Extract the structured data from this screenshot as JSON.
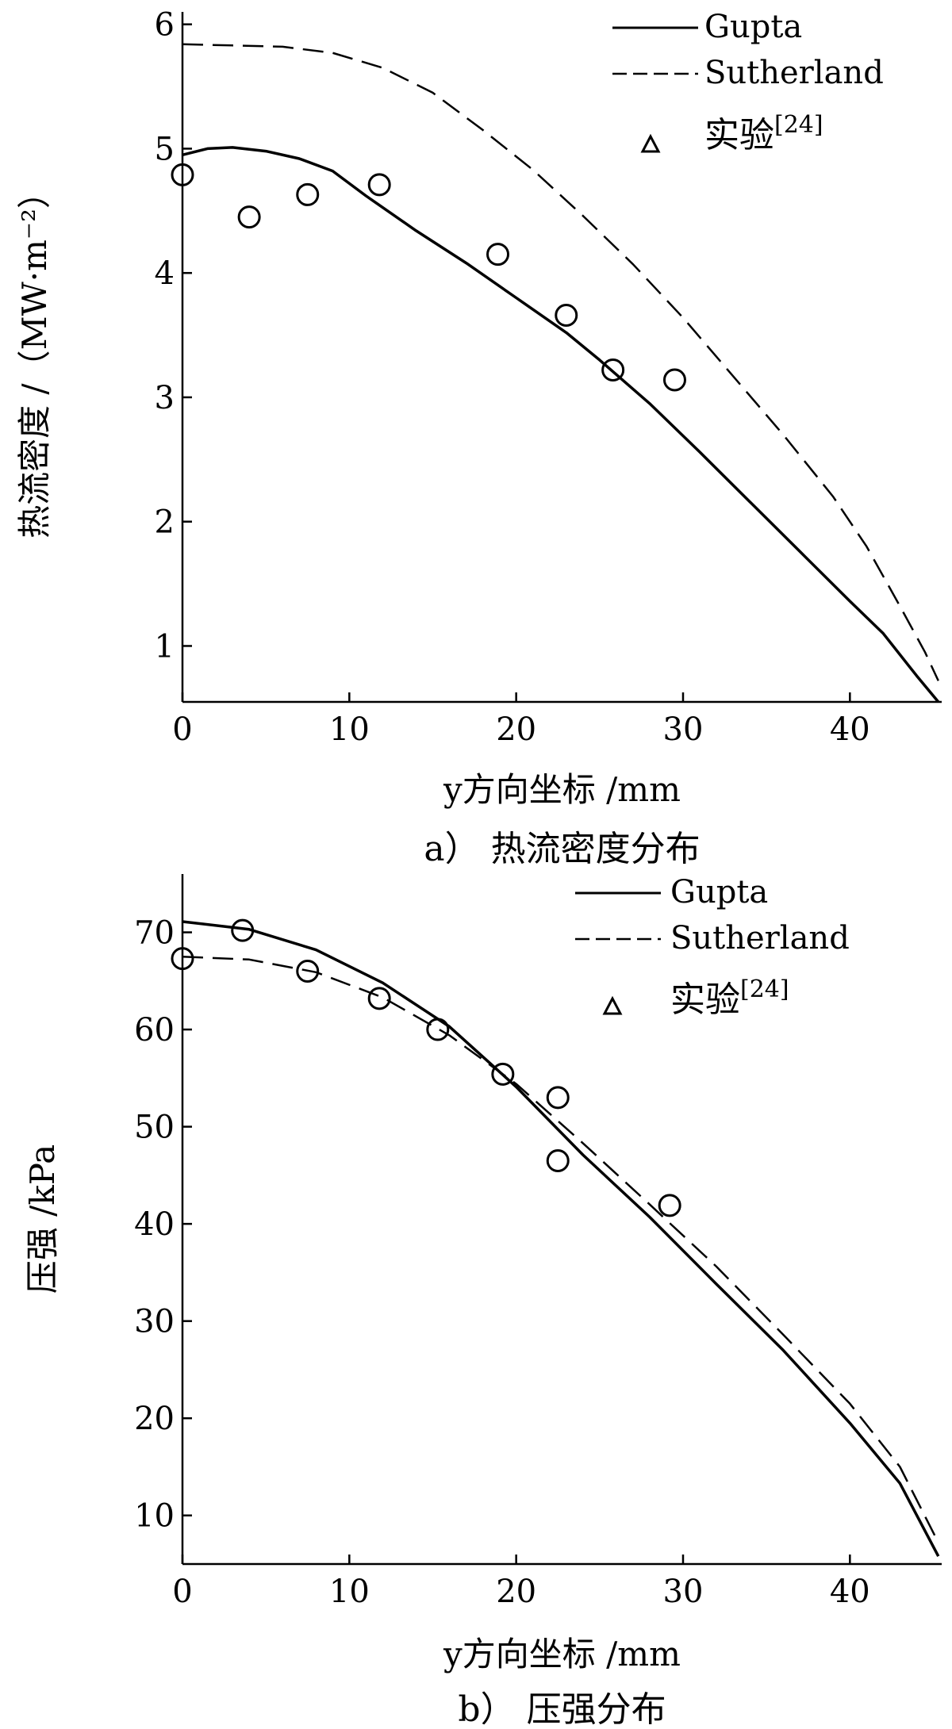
{
  "chart_data": [
    {
      "type": "line",
      "caption": "a） 热流密度分布",
      "xlabel": "y方向坐标 /mm",
      "ylabel": "热流密度 /（MW·m⁻²）",
      "xlim": [
        0,
        45.5
      ],
      "ylim": [
        0.55,
        6.1
      ],
      "xticks": [
        0,
        10,
        20,
        30,
        40
      ],
      "yticks": [
        1,
        2,
        3,
        4,
        5,
        6
      ],
      "legend_position": "top-right",
      "grid": false,
      "series": [
        {
          "name": "Gupta",
          "style": "solid",
          "x": [
            0,
            1.5,
            3,
            5,
            7,
            9,
            11,
            14,
            17,
            20,
            23,
            25,
            28,
            31,
            34,
            37,
            40,
            42,
            44,
            45.3
          ],
          "y": [
            4.95,
            5.0,
            5.01,
            4.98,
            4.92,
            4.82,
            4.62,
            4.34,
            4.08,
            3.8,
            3.52,
            3.3,
            2.95,
            2.56,
            2.16,
            1.76,
            1.36,
            1.1,
            0.76,
            0.55
          ]
        },
        {
          "name": "Sutherland",
          "style": "dashed",
          "x": [
            0,
            3,
            6,
            9,
            12,
            15,
            18,
            21,
            24,
            27,
            30,
            33,
            36,
            39,
            41,
            43,
            44.5,
            45.3
          ],
          "y": [
            5.84,
            5.83,
            5.82,
            5.77,
            5.65,
            5.45,
            5.15,
            4.83,
            4.46,
            4.07,
            3.64,
            3.17,
            2.7,
            2.2,
            1.8,
            1.32,
            0.95,
            0.72
          ]
        },
        {
          "name": "实验",
          "legend_sup": "[24]",
          "style": "marker",
          "x": [
            0,
            4,
            7.5,
            11.8,
            18.9,
            23,
            25.8,
            29.5
          ],
          "y": [
            4.79,
            4.45,
            4.63,
            4.71,
            4.15,
            3.66,
            3.22,
            3.14
          ]
        }
      ]
    },
    {
      "type": "line",
      "caption": "b） 压强分布",
      "xlabel": "y方向坐标 /mm",
      "ylabel": "压强 /kPa",
      "xlim": [
        0,
        45.5
      ],
      "ylim": [
        5,
        76
      ],
      "xticks": [
        0,
        10,
        20,
        30,
        40
      ],
      "yticks": [
        10,
        20,
        30,
        40,
        50,
        60,
        70
      ],
      "legend_position": "top-right",
      "grid": false,
      "series": [
        {
          "name": "Gupta",
          "style": "solid",
          "x": [
            0,
            4,
            8,
            12,
            16,
            20,
            24,
            28,
            32,
            36,
            40,
            43,
            45.3
          ],
          "y": [
            71.1,
            70.3,
            68.2,
            64.8,
            60.3,
            54.1,
            47.1,
            40.7,
            33.8,
            27,
            19.5,
            13.3,
            5.8
          ]
        },
        {
          "name": "Sutherland",
          "style": "dashed",
          "x": [
            0,
            4,
            8,
            12,
            16,
            20,
            24,
            28,
            32,
            36,
            40,
            43,
            45.3
          ],
          "y": [
            67.5,
            67.2,
            65.9,
            63.3,
            59.4,
            54.4,
            48.3,
            42,
            35.6,
            28.6,
            21.5,
            15,
            7.2
          ]
        },
        {
          "name": "实验",
          "legend_sup": "[24]",
          "style": "marker",
          "x": [
            0,
            3.6,
            7.5,
            11.8,
            15.3,
            19.2,
            22.5,
            22.5,
            29.2
          ],
          "y": [
            67.3,
            70.2,
            66,
            63.2,
            60,
            55.4,
            53,
            46.5,
            41.9
          ]
        }
      ]
    }
  ]
}
